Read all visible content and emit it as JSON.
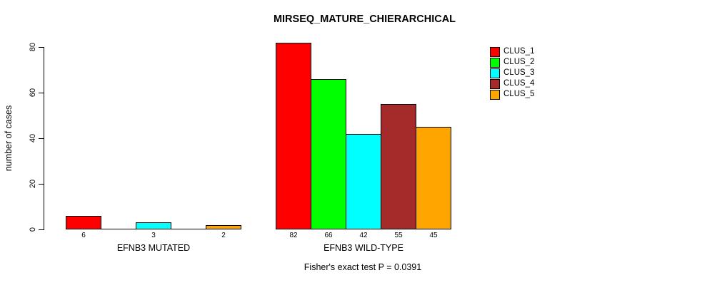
{
  "chart_data": {
    "type": "bar",
    "title": "MIRSEQ_MATURE_CHIERARCHICAL",
    "xlabel": "",
    "ylabel": "number of cases",
    "ylim": [
      0,
      80
    ],
    "yticks": [
      0,
      20,
      40,
      60,
      80
    ],
    "grid": false,
    "legend_position": "topright",
    "categories": [
      "EFNB3 MUTATED",
      "EFNB3 WILD-TYPE"
    ],
    "series": [
      {
        "name": "CLUS_1",
        "color": "#FF0000",
        "values": [
          6,
          82
        ]
      },
      {
        "name": "CLUS_2",
        "color": "#00FF00",
        "values": [
          0,
          66
        ]
      },
      {
        "name": "CLUS_3",
        "color": "#00FFFF",
        "values": [
          3,
          42
        ]
      },
      {
        "name": "CLUS_4",
        "color": "#A52A2A",
        "values": [
          0,
          55
        ]
      },
      {
        "name": "CLUS_5",
        "color": "#FFA500",
        "values": [
          2,
          45
        ]
      }
    ],
    "bar_value_labels": [
      {
        "category": "EFNB3 MUTATED",
        "labels": [
          "6",
          "",
          "3",
          "",
          "2"
        ]
      },
      {
        "category": "EFNB3 WILD-TYPE",
        "labels": [
          "82",
          "66",
          "42",
          "55",
          "45"
        ]
      }
    ],
    "annotation": "Fisher's exact test P = 0.0391"
  }
}
